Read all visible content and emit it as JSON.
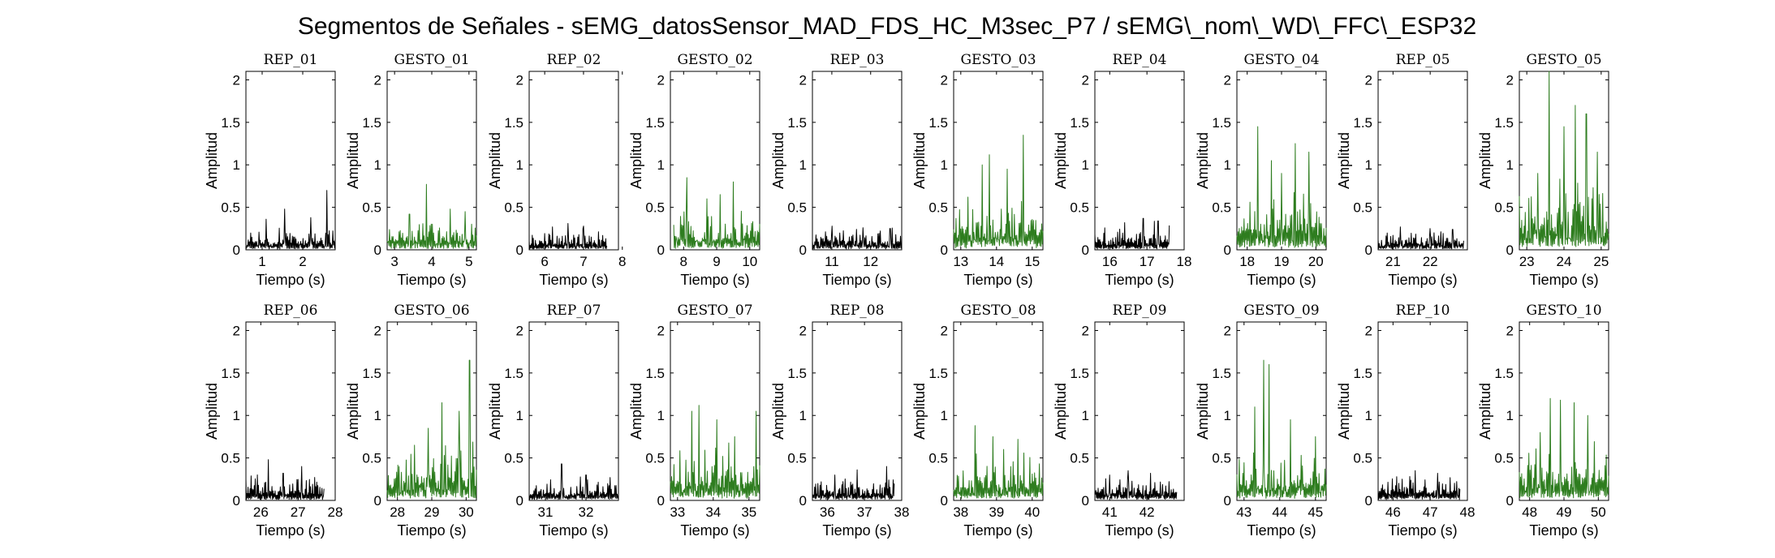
{
  "figure": {
    "title": "Segmentos de Señales - sEMG_datosSensor_MAD_FDS_HC_M3sec_P7 / sEMG\\_nom\\_WD\\_FFC\\_ESP32"
  },
  "colors": {
    "rep": "#000000",
    "gesto": "#2e7d1f",
    "axes": "#000000"
  },
  "chart_data": [
    {
      "type": "line",
      "title": "REP_01",
      "kind": "rep",
      "xlabel": "Tiempo (s)",
      "ylabel": "Amplitud",
      "xlim": [
        0.6,
        2.8
      ],
      "ylim": [
        0,
        2.1
      ],
      "xticks": [
        1,
        2
      ],
      "yticks": [
        0,
        0.5,
        1,
        1.5,
        2
      ],
      "x_start": 0.6,
      "x_end": 2.8,
      "base": 0.14,
      "peaks": [
        [
          1.55,
          0.48
        ],
        [
          2.6,
          0.7
        ],
        [
          1.1,
          0.36
        ],
        [
          2.2,
          0.38
        ]
      ]
    },
    {
      "type": "line",
      "title": "GESTO_01",
      "kind": "gesto",
      "xlabel": "Tiempo (s)",
      "ylabel": "Amplitud",
      "xlim": [
        2.8,
        5.2
      ],
      "ylim": [
        0,
        2.1
      ],
      "xticks": [
        3,
        4,
        5
      ],
      "yticks": [
        0,
        0.5,
        1,
        1.5,
        2
      ],
      "x_start": 2.8,
      "x_end": 5.2,
      "base": 0.2,
      "peaks": [
        [
          3.85,
          0.77
        ],
        [
          4.5,
          0.48
        ],
        [
          3.4,
          0.42
        ],
        [
          4.9,
          0.45
        ]
      ]
    },
    {
      "type": "line",
      "title": "REP_02",
      "kind": "rep",
      "xlabel": "Tiempo (s)",
      "ylabel": "Amplitud",
      "xlim": [
        5.6,
        7.9
      ],
      "ylim": [
        0,
        2.1
      ],
      "xticks": [
        6,
        7,
        8
      ],
      "yticks": [
        0,
        0.5,
        1,
        1.5,
        2
      ],
      "x_start": 5.6,
      "x_end": 7.6,
      "base": 0.13,
      "peaks": [
        [
          6.6,
          0.31
        ],
        [
          6.2,
          0.27
        ],
        [
          7.0,
          0.28
        ]
      ]
    },
    {
      "type": "line",
      "title": "GESTO_02",
      "kind": "gesto",
      "xlabel": "Tiempo (s)",
      "ylabel": "Amplitud",
      "xlim": [
        7.6,
        10.3
      ],
      "ylim": [
        0,
        2.1
      ],
      "xticks": [
        8,
        9,
        10
      ],
      "yticks": [
        0,
        0.5,
        1,
        1.5,
        2
      ],
      "x_start": 7.7,
      "x_end": 10.3,
      "base": 0.26,
      "peaks": [
        [
          8.1,
          0.85
        ],
        [
          9.5,
          0.8
        ],
        [
          9.1,
          0.65
        ],
        [
          8.7,
          0.6
        ]
      ]
    },
    {
      "type": "line",
      "title": "REP_03",
      "kind": "rep",
      "xlabel": "Tiempo (s)",
      "ylabel": "Amplitud",
      "xlim": [
        10.5,
        12.8
      ],
      "ylim": [
        0,
        2.1
      ],
      "xticks": [
        11,
        12
      ],
      "yticks": [
        0,
        0.5,
        1,
        1.5,
        2
      ],
      "x_start": 10.5,
      "x_end": 12.8,
      "base": 0.14,
      "peaks": [
        [
          11.0,
          0.28
        ],
        [
          11.8,
          0.26
        ],
        [
          12.5,
          0.25
        ]
      ]
    },
    {
      "type": "line",
      "title": "GESTO_03",
      "kind": "gesto",
      "xlabel": "Tiempo (s)",
      "ylabel": "Amplitud",
      "xlim": [
        12.8,
        15.3
      ],
      "ylim": [
        0,
        2.1
      ],
      "xticks": [
        13,
        14,
        15
      ],
      "yticks": [
        0,
        0.5,
        1,
        1.5,
        2
      ],
      "x_start": 12.8,
      "x_end": 15.3,
      "base": 0.32,
      "peaks": [
        [
          14.75,
          1.35
        ],
        [
          13.8,
          1.12
        ],
        [
          13.6,
          1.0
        ],
        [
          14.3,
          0.95
        ],
        [
          13.2,
          0.62
        ]
      ]
    },
    {
      "type": "line",
      "title": "REP_04",
      "kind": "rep",
      "xlabel": "Tiempo (s)",
      "ylabel": "Amplitud",
      "xlim": [
        15.6,
        18.0
      ],
      "ylim": [
        0,
        2.1
      ],
      "xticks": [
        16,
        17,
        18
      ],
      "yticks": [
        0,
        0.5,
        1,
        1.5,
        2
      ],
      "x_start": 15.6,
      "x_end": 17.6,
      "base": 0.16,
      "peaks": [
        [
          16.9,
          0.37
        ],
        [
          16.4,
          0.32
        ],
        [
          17.3,
          0.34
        ]
      ]
    },
    {
      "type": "line",
      "title": "GESTO_04",
      "kind": "gesto",
      "xlabel": "Tiempo (s)",
      "ylabel": "Amplitud",
      "xlim": [
        17.7,
        20.3
      ],
      "ylim": [
        0,
        2.1
      ],
      "xticks": [
        18,
        19,
        20
      ],
      "yticks": [
        0,
        0.5,
        1,
        1.5,
        2
      ],
      "x_start": 17.7,
      "x_end": 20.3,
      "base": 0.35,
      "peaks": [
        [
          18.3,
          1.45
        ],
        [
          19.4,
          1.25
        ],
        [
          19.8,
          1.15
        ],
        [
          18.7,
          1.05
        ],
        [
          19.0,
          0.9
        ]
      ]
    },
    {
      "type": "line",
      "title": "REP_05",
      "kind": "rep",
      "xlabel": "Tiempo (s)",
      "ylabel": "Amplitud",
      "xlim": [
        20.6,
        23.0
      ],
      "ylim": [
        0,
        2.1
      ],
      "xticks": [
        21,
        22
      ],
      "yticks": [
        0,
        0.5,
        1,
        1.5,
        2
      ],
      "x_start": 20.6,
      "x_end": 22.9,
      "base": 0.13,
      "peaks": [
        [
          21.2,
          0.27
        ],
        [
          22.0,
          0.25
        ],
        [
          22.6,
          0.24
        ]
      ]
    },
    {
      "type": "line",
      "title": "GESTO_05",
      "kind": "gesto",
      "xlabel": "Tiempo (s)",
      "ylabel": "Amplitud",
      "xlim": [
        22.8,
        25.2
      ],
      "ylim": [
        0,
        2.1
      ],
      "xticks": [
        23,
        24,
        25
      ],
      "yticks": [
        0,
        0.5,
        1,
        1.5,
        2
      ],
      "x_start": 22.8,
      "x_end": 25.2,
      "base": 0.45,
      "peaks": [
        [
          23.6,
          2.1
        ],
        [
          24.3,
          1.7
        ],
        [
          24.6,
          1.6
        ],
        [
          24.0,
          1.45
        ],
        [
          24.9,
          1.15
        ],
        [
          23.3,
          0.9
        ]
      ]
    },
    {
      "type": "line",
      "title": "REP_06",
      "kind": "rep",
      "xlabel": "Tiempo (s)",
      "ylabel": "Amplitud",
      "xlim": [
        25.6,
        28.0
      ],
      "ylim": [
        0,
        2.1
      ],
      "xticks": [
        26,
        27,
        28
      ],
      "yticks": [
        0,
        0.5,
        1,
        1.5,
        2
      ],
      "x_start": 25.6,
      "x_end": 27.7,
      "base": 0.15,
      "peaks": [
        [
          26.2,
          0.48
        ],
        [
          27.1,
          0.4
        ],
        [
          26.6,
          0.32
        ]
      ]
    },
    {
      "type": "line",
      "title": "GESTO_06",
      "kind": "gesto",
      "xlabel": "Tiempo (s)",
      "ylabel": "Amplitud",
      "xlim": [
        27.7,
        30.3
      ],
      "ylim": [
        0,
        2.1
      ],
      "xticks": [
        28,
        29,
        30
      ],
      "yticks": [
        0,
        0.5,
        1,
        1.5,
        2
      ],
      "x_start": 27.7,
      "x_end": 30.3,
      "base": 0.35,
      "peaks": [
        [
          30.1,
          1.65
        ],
        [
          29.3,
          1.15
        ],
        [
          29.8,
          1.05
        ],
        [
          28.9,
          0.85
        ],
        [
          28.5,
          0.65
        ]
      ]
    },
    {
      "type": "line",
      "title": "REP_07",
      "kind": "rep",
      "xlabel": "Tiempo (s)",
      "ylabel": "Amplitud",
      "xlim": [
        30.6,
        32.8
      ],
      "ylim": [
        0,
        2.1
      ],
      "xticks": [
        31,
        32
      ],
      "yticks": [
        0,
        0.5,
        1,
        1.5,
        2
      ],
      "x_start": 30.6,
      "x_end": 32.8,
      "base": 0.14,
      "peaks": [
        [
          31.4,
          0.43
        ],
        [
          32.0,
          0.3
        ],
        [
          32.6,
          0.27
        ]
      ]
    },
    {
      "type": "line",
      "title": "GESTO_07",
      "kind": "gesto",
      "xlabel": "Tiempo (s)",
      "ylabel": "Amplitud",
      "xlim": [
        32.8,
        35.3
      ],
      "ylim": [
        0,
        2.1
      ],
      "xticks": [
        33,
        34,
        35
      ],
      "yticks": [
        0,
        0.5,
        1,
        1.5,
        2
      ],
      "x_start": 32.8,
      "x_end": 35.3,
      "base": 0.35,
      "peaks": [
        [
          33.6,
          1.12
        ],
        [
          33.4,
          1.05
        ],
        [
          34.1,
          0.95
        ],
        [
          35.2,
          1.05
        ],
        [
          34.6,
          0.75
        ]
      ]
    },
    {
      "type": "line",
      "title": "REP_08",
      "kind": "rep",
      "xlabel": "Tiempo (s)",
      "ylabel": "Amplitud",
      "xlim": [
        35.6,
        38.0
      ],
      "ylim": [
        0,
        2.1
      ],
      "xticks": [
        36,
        37,
        38
      ],
      "yticks": [
        0,
        0.5,
        1,
        1.5,
        2
      ],
      "x_start": 35.6,
      "x_end": 37.8,
      "base": 0.15,
      "peaks": [
        [
          37.6,
          0.4
        ],
        [
          36.8,
          0.36
        ],
        [
          36.2,
          0.3
        ]
      ]
    },
    {
      "type": "line",
      "title": "GESTO_08",
      "kind": "gesto",
      "xlabel": "Tiempo (s)",
      "ylabel": "Amplitud",
      "xlim": [
        37.8,
        40.3
      ],
      "ylim": [
        0,
        2.1
      ],
      "xticks": [
        38,
        39,
        40
      ],
      "yticks": [
        0,
        0.5,
        1,
        1.5,
        2
      ],
      "x_start": 37.8,
      "x_end": 40.3,
      "base": 0.28,
      "peaks": [
        [
          38.4,
          0.88
        ],
        [
          38.9,
          0.75
        ],
        [
          39.6,
          0.72
        ],
        [
          39.2,
          0.6
        ]
      ]
    },
    {
      "type": "line",
      "title": "REP_09",
      "kind": "rep",
      "xlabel": "Tiempo (s)",
      "ylabel": "Amplitud",
      "xlim": [
        40.6,
        43.0
      ],
      "ylim": [
        0,
        2.1
      ],
      "xticks": [
        41,
        42
      ],
      "yticks": [
        0,
        0.5,
        1,
        1.5,
        2
      ],
      "x_start": 40.6,
      "x_end": 42.8,
      "base": 0.15,
      "peaks": [
        [
          41.5,
          0.35
        ],
        [
          42.1,
          0.32
        ],
        [
          41.0,
          0.3
        ]
      ]
    },
    {
      "type": "line",
      "title": "GESTO_09",
      "kind": "gesto",
      "xlabel": "Tiempo (s)",
      "ylabel": "Amplitud",
      "xlim": [
        42.8,
        45.3
      ],
      "ylim": [
        0,
        2.1
      ],
      "xticks": [
        43,
        44,
        45
      ],
      "yticks": [
        0,
        0.5,
        1,
        1.5,
        2
      ],
      "x_start": 42.8,
      "x_end": 45.3,
      "base": 0.3,
      "peaks": [
        [
          43.55,
          1.65
        ],
        [
          43.7,
          1.6
        ],
        [
          43.3,
          1.1
        ],
        [
          44.3,
          0.95
        ],
        [
          45.0,
          0.75
        ]
      ]
    },
    {
      "type": "line",
      "title": "REP_10",
      "kind": "rep",
      "xlabel": "Tiempo (s)",
      "ylabel": "Amplitud",
      "xlim": [
        45.6,
        48.0
      ],
      "ylim": [
        0,
        2.1
      ],
      "xticks": [
        46,
        47,
        48
      ],
      "yticks": [
        0,
        0.5,
        1,
        1.5,
        2
      ],
      "x_start": 45.6,
      "x_end": 47.8,
      "base": 0.15,
      "peaks": [
        [
          46.6,
          0.35
        ],
        [
          47.2,
          0.32
        ],
        [
          46.1,
          0.28
        ]
      ]
    },
    {
      "type": "line",
      "title": "GESTO_10",
      "kind": "gesto",
      "xlabel": "Tiempo (s)",
      "ylabel": "Amplitud",
      "xlim": [
        47.7,
        50.3
      ],
      "ylim": [
        0,
        2.1
      ],
      "xticks": [
        48,
        49,
        50
      ],
      "yticks": [
        0,
        0.5,
        1,
        1.5,
        2
      ],
      "x_start": 47.7,
      "x_end": 50.3,
      "base": 0.35,
      "peaks": [
        [
          48.6,
          1.2
        ],
        [
          48.9,
          1.18
        ],
        [
          49.3,
          1.15
        ],
        [
          49.7,
          1.0
        ],
        [
          48.3,
          0.8
        ]
      ]
    }
  ]
}
